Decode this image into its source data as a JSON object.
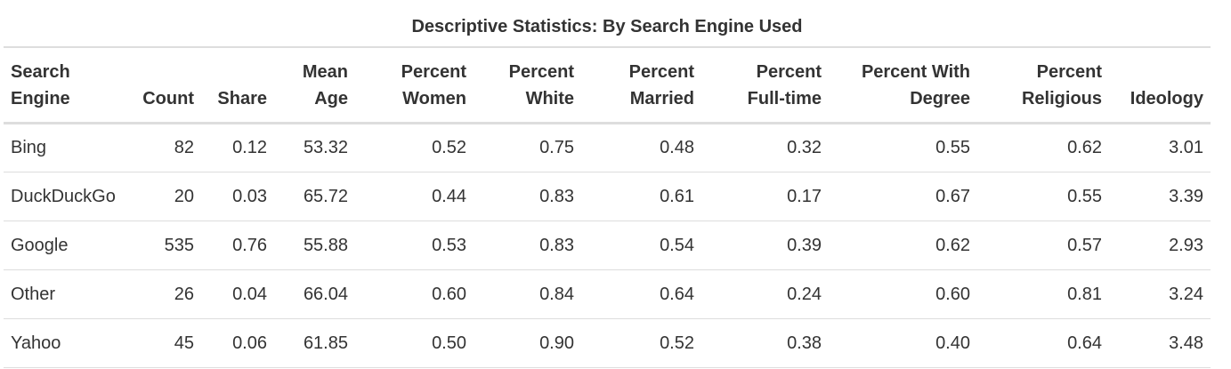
{
  "table": {
    "caption": "Descriptive Statistics: By Search Engine Used",
    "headers": [
      [
        "Search",
        "Engine"
      ],
      [
        "Count"
      ],
      [
        "Share"
      ],
      [
        "Mean",
        "Age"
      ],
      [
        "Percent",
        "Women"
      ],
      [
        "Percent",
        "White"
      ],
      [
        "Percent",
        "Married"
      ],
      [
        "Percent",
        "Full-time"
      ],
      [
        "Percent With",
        "Degree"
      ],
      [
        "Percent",
        "Religious"
      ],
      [
        "Ideology"
      ]
    ],
    "rows": [
      [
        "Bing",
        "82",
        "0.12",
        "53.32",
        "0.52",
        "0.75",
        "0.48",
        "0.32",
        "0.55",
        "0.62",
        "3.01"
      ],
      [
        "DuckDuckGo",
        "20",
        "0.03",
        "65.72",
        "0.44",
        "0.83",
        "0.61",
        "0.17",
        "0.67",
        "0.55",
        "3.39"
      ],
      [
        "Google",
        "535",
        "0.76",
        "55.88",
        "0.53",
        "0.83",
        "0.54",
        "0.39",
        "0.62",
        "0.57",
        "2.93"
      ],
      [
        "Other",
        "26",
        "0.04",
        "66.04",
        "0.60",
        "0.84",
        "0.64",
        "0.24",
        "0.60",
        "0.81",
        "3.24"
      ],
      [
        "Yahoo",
        "45",
        "0.06",
        "61.85",
        "0.50",
        "0.90",
        "0.52",
        "0.38",
        "0.40",
        "0.64",
        "3.48"
      ]
    ]
  }
}
